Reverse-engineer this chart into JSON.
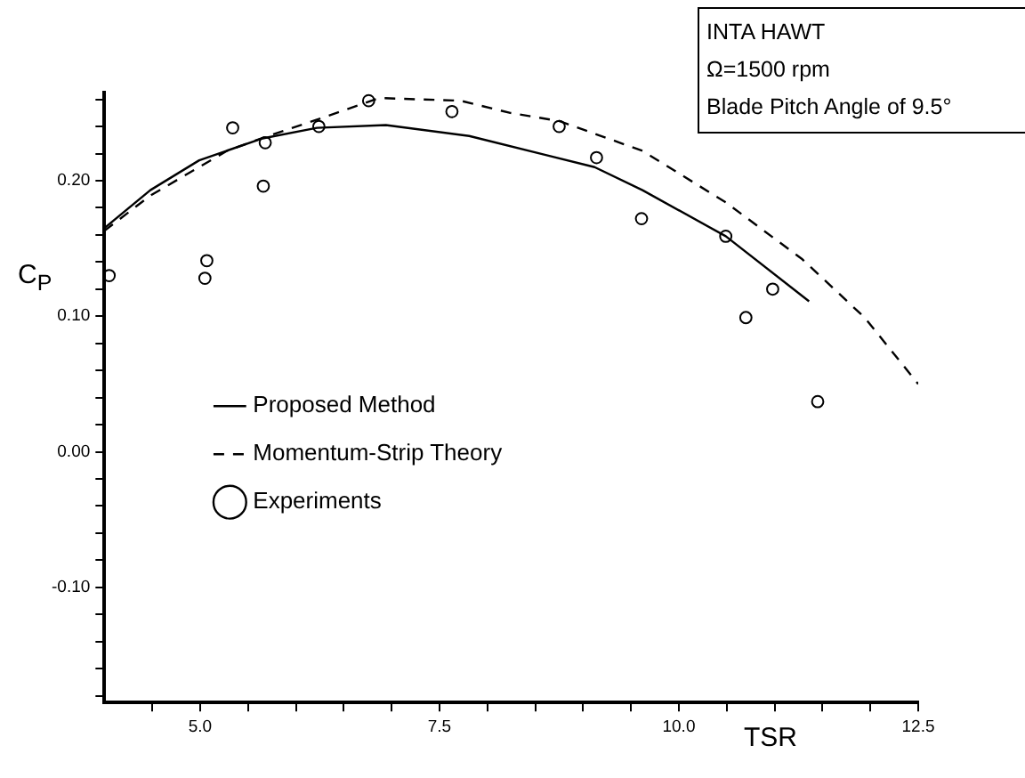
{
  "chart_data": {
    "type": "line",
    "xlabel": "TSR",
    "ylabel": "C$_{P}$",
    "annotations": [
      "INTA HAWT",
      "Ω=1500 rpm",
      "Blade Pitch Angle of 9.5°"
    ],
    "xlim": [
      4,
      12.5
    ],
    "ylim": [
      -0.185,
      0.265
    ],
    "xticks": [
      {
        "value": 4.5,
        "label": null
      },
      {
        "value": 5,
        "label": "5.0"
      },
      {
        "value": 5.5,
        "label": null
      },
      {
        "value": 6,
        "label": null
      },
      {
        "value": 6.5,
        "label": null
      },
      {
        "value": 7,
        "label": null
      },
      7.5,
      {
        "value": 8,
        "label": null
      },
      {
        "value": 8.5,
        "label": null
      },
      {
        "value": 9,
        "label": null
      },
      {
        "value": 9.5,
        "label": null
      },
      {
        "value": 10,
        "label": "10.0"
      },
      {
        "value": 10.5,
        "label": null
      },
      {
        "value": 11,
        "label": null
      },
      {
        "value": 11.5,
        "label": null
      },
      {
        "value": 12,
        "label": null
      },
      12.5
    ],
    "yticks": [
      {
        "value": -0.18,
        "label": null
      },
      {
        "value": -0.16,
        "label": null
      },
      {
        "value": -0.14,
        "label": null
      },
      {
        "value": -0.12,
        "label": null
      },
      {
        "value": -0.1,
        "label": "-0.10"
      },
      {
        "value": -0.08,
        "label": null
      },
      {
        "value": -0.06,
        "label": null
      },
      {
        "value": -0.04,
        "label": null
      },
      {
        "value": -0.02,
        "label": null
      },
      {
        "value": 0,
        "label": "0.00"
      },
      {
        "value": 0.02,
        "label": null
      },
      {
        "value": 0.04,
        "label": null
      },
      {
        "value": 0.06,
        "label": null
      },
      {
        "value": 0.08,
        "label": null
      },
      {
        "value": 0.1,
        "label": "0.10"
      },
      {
        "value": 0.12,
        "label": null
      },
      {
        "value": 0.14,
        "label": null
      },
      {
        "value": 0.16,
        "label": null
      },
      {
        "value": 0.18,
        "label": null
      },
      {
        "value": 0.2,
        "label": "0.20"
      },
      {
        "value": 0.22,
        "label": null
      },
      {
        "value": 0.24,
        "label": null
      },
      {
        "value": 0.26,
        "label": null
      }
    ],
    "grid": false,
    "legend": "bottom left",
    "series": [
      {
        "name": "Proposed Method",
        "color": "#000000",
        "line_style": "solid",
        "marker": "none",
        "x": [
          4.0,
          4.48,
          4.99,
          5.64,
          6.22,
          6.94,
          7.81,
          8.61,
          9.12,
          9.62,
          10.49,
          11.36
        ],
        "values": [
          0.165,
          0.193,
          0.215,
          0.231,
          0.239,
          0.241,
          0.233,
          0.219,
          0.21,
          0.193,
          0.159,
          0.111
        ]
      },
      {
        "name": "Momentum-Strip Theory",
        "color": "#000000",
        "line_style": "dashed",
        "marker": "none",
        "x": [
          4.0,
          4.48,
          5.28,
          5.71,
          6.22,
          6.87,
          7.72,
          8.24,
          8.75,
          9.62,
          10.49,
          11.29,
          11.94,
          12.5
        ],
        "values": [
          0.163,
          0.189,
          0.222,
          0.233,
          0.245,
          0.261,
          0.259,
          0.25,
          0.244,
          0.222,
          0.184,
          0.142,
          0.099,
          0.05
        ]
      },
      {
        "name": "Experiments",
        "type": "scatter",
        "color": "#000000",
        "marker": "circle",
        "x": [
          4.05,
          5.07,
          5.05,
          5.34,
          5.68,
          5.66,
          6.24,
          6.76,
          7.63,
          8.75,
          9.14,
          9.61,
          10.49,
          10.98,
          10.7,
          11.45
        ],
        "values": [
          0.13,
          0.141,
          0.128,
          0.239,
          0.228,
          0.196,
          0.24,
          0.259,
          0.251,
          0.24,
          0.217,
          0.172,
          0.159,
          0.12,
          0.099,
          0.037
        ]
      }
    ]
  }
}
